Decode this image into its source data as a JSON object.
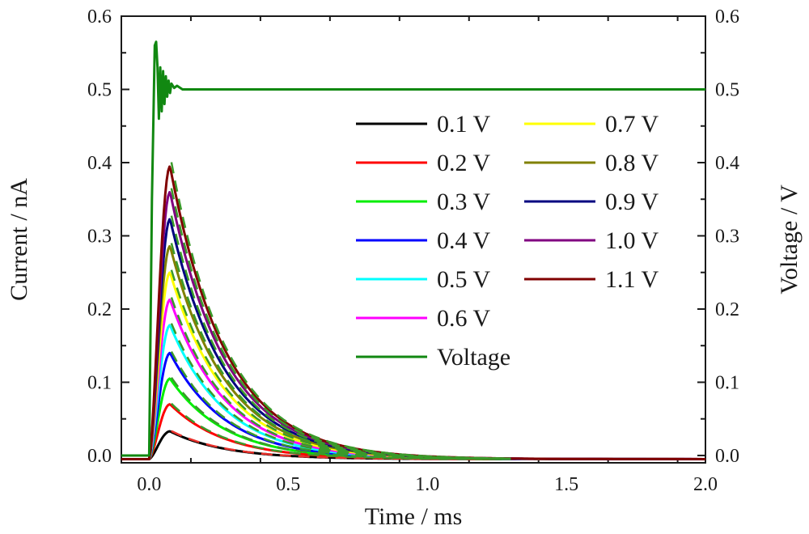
{
  "chart_data": {
    "type": "line",
    "title": "",
    "xlabel": "Time / ms",
    "ylabel": "Current / nA",
    "y2label": "Voltage / V",
    "xlim": [
      -0.1,
      2.0
    ],
    "ylim": [
      -0.01,
      0.6
    ],
    "y2lim": [
      -0.01,
      0.6
    ],
    "xticks": [
      "0.0",
      "0.5",
      "1.0",
      "1.5",
      "2.0"
    ],
    "xtick_values": [
      0.0,
      0.5,
      1.0,
      1.5,
      2.0
    ],
    "yticks": [
      "0.0",
      "0.1",
      "0.2",
      "0.3",
      "0.4",
      "0.5",
      "0.6"
    ],
    "ytick_values": [
      0.0,
      0.1,
      0.2,
      0.3,
      0.4,
      0.5,
      0.6
    ],
    "y2ticks": [
      "0.0",
      "0.1",
      "0.2",
      "0.3",
      "0.4",
      "0.5",
      "0.6"
    ],
    "y2tick_values": [
      0.0,
      0.1,
      0.2,
      0.3,
      0.4,
      0.5,
      0.6
    ],
    "grid": false,
    "legend_position": "top-right",
    "pulse_start_ms": 0.0,
    "peak_time_ms": 0.075,
    "decay_tau_ms": 0.2,
    "baseline_nA": -0.005,
    "fit_style": "dashed",
    "series": [
      {
        "name": "0.1 V",
        "color": "#000000",
        "fit_color": "#e8302a",
        "peak": 0.033
      },
      {
        "name": "0.2 V",
        "color": "#ff0000",
        "fit_color": "#3a9a2a",
        "peak": 0.07
      },
      {
        "name": "0.3 V",
        "color": "#00ee00",
        "fit_color": "#3a9a2a",
        "peak": 0.105
      },
      {
        "name": "0.4 V",
        "color": "#0000ff",
        "fit_color": "#3a9a2a",
        "peak": 0.14
      },
      {
        "name": "0.5 V",
        "color": "#00ffff",
        "fit_color": "#3a9a2a",
        "peak": 0.178
      },
      {
        "name": "0.6 V",
        "color": "#ff00ff",
        "fit_color": "#3a9a2a",
        "peak": 0.213
      },
      {
        "name": "0.7 V",
        "color": "#ffff00",
        "fit_color": "#3a9a2a",
        "peak": 0.25
      },
      {
        "name": "0.8 V",
        "color": "#808000",
        "fit_color": "#3a9a2a",
        "peak": 0.286
      },
      {
        "name": "0.9 V",
        "color": "#000080",
        "fit_color": "#3a9a2a",
        "peak": 0.323
      },
      {
        "name": "1.0 V",
        "color": "#800080",
        "fit_color": "#3a9a2a",
        "peak": 0.36
      },
      {
        "name": "1.1 V",
        "color": "#800000",
        "fit_color": "#3a9a2a",
        "peak": 0.395
      }
    ],
    "voltage_series": {
      "name": "Voltage",
      "color": "#118811",
      "axis": "right",
      "level": 0.5,
      "overshoot_peak": 0.565,
      "x": [
        -0.1,
        0.0,
        0.01,
        0.02,
        0.025,
        0.03,
        0.035,
        0.04,
        0.045,
        0.05,
        0.055,
        0.06,
        0.065,
        0.07,
        0.075,
        0.08,
        0.09,
        0.1,
        0.12,
        2.0
      ],
      "values": [
        0.0,
        0.0,
        0.35,
        0.56,
        0.565,
        0.53,
        0.46,
        0.53,
        0.47,
        0.525,
        0.48,
        0.518,
        0.49,
        0.512,
        0.495,
        0.508,
        0.502,
        0.505,
        0.5,
        0.5
      ]
    },
    "legend_columns": [
      [
        "0.1 V",
        "0.2 V",
        "0.3 V",
        "0.4 V",
        "0.5 V",
        "0.6 V",
        "Voltage"
      ],
      [
        "0.7 V",
        "0.8 V",
        "0.9 V",
        "1.0 V",
        "1.1 V"
      ]
    ]
  }
}
